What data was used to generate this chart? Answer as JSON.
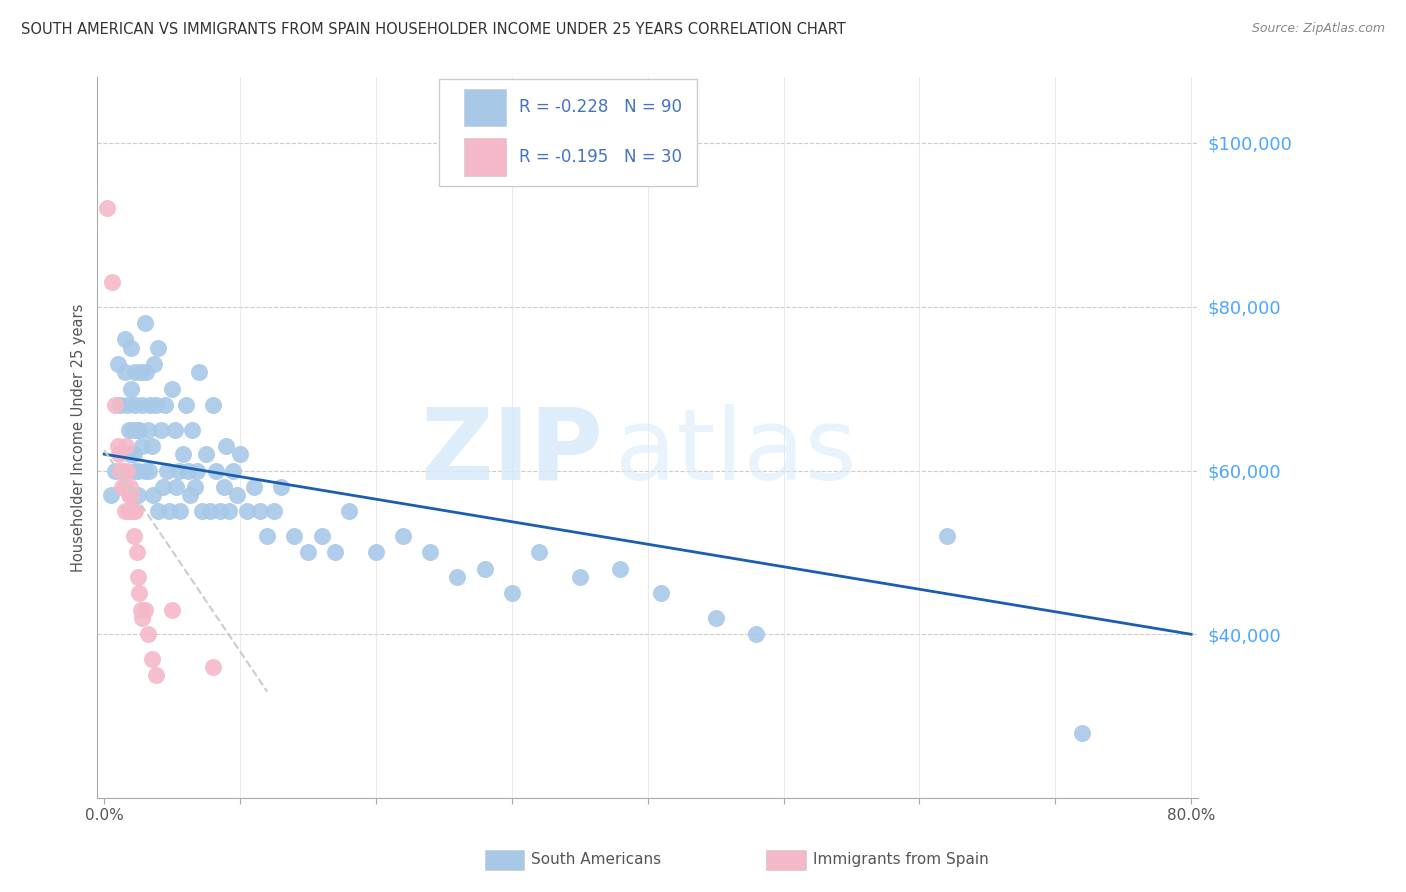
{
  "title": "SOUTH AMERICAN VS IMMIGRANTS FROM SPAIN HOUSEHOLDER INCOME UNDER 25 YEARS CORRELATION CHART",
  "source": "Source: ZipAtlas.com",
  "ylabel": "Householder Income Under 25 years",
  "xlim": [
    -0.005,
    0.805
  ],
  "ylim": [
    20000,
    108000
  ],
  "yticks": [
    40000,
    60000,
    80000,
    100000
  ],
  "ytick_labels": [
    "$40,000",
    "$60,000",
    "$80,000",
    "$100,000"
  ],
  "xticks": [
    0.0,
    0.1,
    0.2,
    0.3,
    0.4,
    0.5,
    0.6,
    0.7,
    0.8
  ],
  "blue_color": "#a8c8e8",
  "pink_color": "#f4b8c8",
  "trend_blue_color": "#1a5fad",
  "trend_pink_color": "#cccccc",
  "label_blue": "South Americans",
  "label_pink": "Immigrants from Spain",
  "watermark_zip": "ZIP",
  "watermark_atlas": "atlas",
  "legend_color": "#4472c4",
  "blue_x": [
    0.005,
    0.008,
    0.01,
    0.012,
    0.015,
    0.015,
    0.017,
    0.018,
    0.019,
    0.02,
    0.02,
    0.021,
    0.022,
    0.022,
    0.023,
    0.023,
    0.024,
    0.025,
    0.025,
    0.026,
    0.027,
    0.028,
    0.028,
    0.03,
    0.03,
    0.031,
    0.032,
    0.033,
    0.034,
    0.035,
    0.036,
    0.037,
    0.038,
    0.04,
    0.04,
    0.042,
    0.043,
    0.045,
    0.046,
    0.048,
    0.05,
    0.052,
    0.053,
    0.055,
    0.056,
    0.058,
    0.06,
    0.062,
    0.063,
    0.065,
    0.067,
    0.068,
    0.07,
    0.072,
    0.075,
    0.078,
    0.08,
    0.082,
    0.085,
    0.088,
    0.09,
    0.092,
    0.095,
    0.098,
    0.1,
    0.105,
    0.11,
    0.115,
    0.12,
    0.125,
    0.13,
    0.14,
    0.15,
    0.16,
    0.17,
    0.18,
    0.2,
    0.22,
    0.24,
    0.26,
    0.28,
    0.3,
    0.32,
    0.35,
    0.38,
    0.41,
    0.45,
    0.48,
    0.62,
    0.72
  ],
  "blue_y": [
    57000,
    60000,
    73000,
    68000,
    76000,
    72000,
    68000,
    65000,
    62000,
    75000,
    70000,
    65000,
    62000,
    60000,
    72000,
    68000,
    65000,
    60000,
    57000,
    65000,
    72000,
    68000,
    63000,
    78000,
    60000,
    72000,
    65000,
    60000,
    68000,
    63000,
    57000,
    73000,
    68000,
    75000,
    55000,
    65000,
    58000,
    68000,
    60000,
    55000,
    70000,
    65000,
    58000,
    60000,
    55000,
    62000,
    68000,
    60000,
    57000,
    65000,
    58000,
    60000,
    72000,
    55000,
    62000,
    55000,
    68000,
    60000,
    55000,
    58000,
    63000,
    55000,
    60000,
    57000,
    62000,
    55000,
    58000,
    55000,
    52000,
    55000,
    58000,
    52000,
    50000,
    52000,
    50000,
    55000,
    50000,
    52000,
    50000,
    47000,
    48000,
    45000,
    50000,
    47000,
    48000,
    45000,
    42000,
    40000,
    52000,
    28000
  ],
  "pink_x": [
    0.002,
    0.006,
    0.008,
    0.01,
    0.011,
    0.012,
    0.013,
    0.014,
    0.015,
    0.015,
    0.016,
    0.017,
    0.018,
    0.018,
    0.019,
    0.02,
    0.021,
    0.022,
    0.023,
    0.024,
    0.025,
    0.026,
    0.027,
    0.028,
    0.03,
    0.032,
    0.035,
    0.038,
    0.05,
    0.08
  ],
  "pink_y": [
    92000,
    83000,
    68000,
    63000,
    62000,
    60000,
    58000,
    60000,
    58000,
    55000,
    63000,
    60000,
    57000,
    55000,
    58000,
    57000,
    55000,
    52000,
    55000,
    50000,
    47000,
    45000,
    43000,
    42000,
    43000,
    40000,
    37000,
    35000,
    43000,
    36000
  ],
  "blue_trend_x": [
    0.0,
    0.8
  ],
  "blue_trend_y": [
    62000,
    40000
  ],
  "pink_trend_x": [
    0.0,
    0.12
  ],
  "pink_trend_y": [
    62500,
    33000
  ]
}
